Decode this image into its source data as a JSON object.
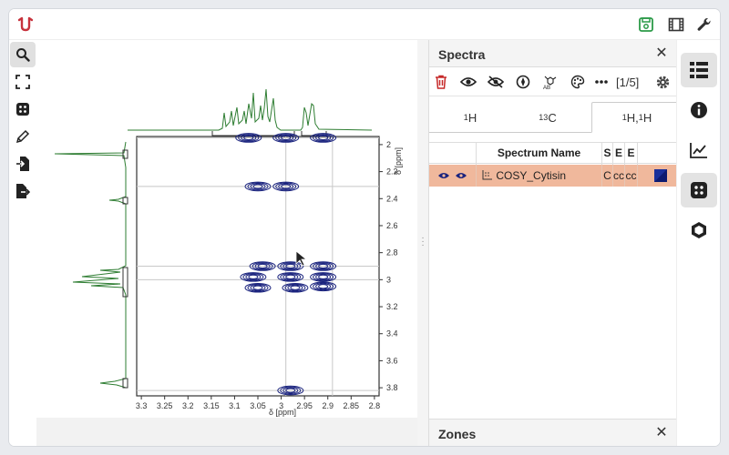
{
  "app": {
    "accent": "#c7323c",
    "save_color": "#2b9a48"
  },
  "top_icons": [
    "save-icon",
    "film-icon",
    "wrench-icon"
  ],
  "left_tools": [
    "zoom-icon",
    "fullscreen-icon",
    "zones-icon",
    "pen-icon",
    "import-icon",
    "export-icon"
  ],
  "viewer": {
    "x_axis_label": "δ [ppm]",
    "y_axis_label": "δ [ppm]",
    "x_ticks": [
      "3.3",
      "3.25",
      "3.2",
      "3.15",
      "3.1",
      "3.05",
      "3",
      "2.95",
      "2.9",
      "2.85",
      "2.8"
    ],
    "y_ticks": [
      "2",
      "2.2",
      "2.4",
      "2.6",
      "2.8",
      "3",
      "3.2",
      "3.4",
      "3.6",
      "3.8"
    ],
    "trace_color": "#2e7d32",
    "contour_color": "#1a237e"
  },
  "chart_data": {
    "type": "heatmap",
    "xlabel": "δ [ppm]",
    "ylabel": "δ [ppm]",
    "xlim": [
      3.31,
      2.79
    ],
    "ylim": [
      1.94,
      3.86
    ],
    "x_ticks": [
      3.3,
      3.25,
      3.2,
      3.15,
      3.1,
      3.05,
      3.0,
      2.95,
      2.9,
      2.85,
      2.8
    ],
    "y_ticks": [
      2.0,
      2.2,
      2.4,
      2.6,
      2.8,
      3.0,
      3.2,
      3.4,
      3.6,
      3.8
    ],
    "cross_peaks": [
      {
        "x": 3.07,
        "y": 1.95
      },
      {
        "x": 2.99,
        "y": 1.95
      },
      {
        "x": 2.91,
        "y": 1.95
      },
      {
        "x": 3.05,
        "y": 2.31
      },
      {
        "x": 2.99,
        "y": 2.31
      },
      {
        "x": 3.04,
        "y": 2.9
      },
      {
        "x": 2.98,
        "y": 2.9
      },
      {
        "x": 2.91,
        "y": 2.9
      },
      {
        "x": 3.06,
        "y": 2.98
      },
      {
        "x": 2.98,
        "y": 2.98
      },
      {
        "x": 2.91,
        "y": 2.98
      },
      {
        "x": 3.05,
        "y": 3.06
      },
      {
        "x": 2.97,
        "y": 3.06
      },
      {
        "x": 2.91,
        "y": 3.05
      },
      {
        "x": 2.98,
        "y": 3.82
      }
    ],
    "h_lines": [
      1.95,
      2.31,
      2.9,
      3.0,
      3.82
    ],
    "v_lines": [
      2.99,
      2.89
    ],
    "grid": false
  },
  "spectra_panel": {
    "title": "Spectra",
    "page": "[1/5]",
    "tabs": [
      {
        "base": "",
        "sup": "1",
        "el": "H"
      },
      {
        "base": "",
        "sup": "13",
        "el": "C"
      },
      {
        "base": "",
        "sup": "1",
        "el": "H,",
        "sup2": "1",
        "el2": "H"
      }
    ],
    "columns": [
      "Spectrum Name",
      "S",
      "E",
      "E"
    ],
    "rows": [
      {
        "name": "COSY_Cytisin",
        "c1": "C",
        "c2": "cc",
        "c3": "cc",
        "color": "#1a2f9a"
      }
    ]
  },
  "zones_panel": {
    "title": "Zones"
  },
  "right_icons": [
    "table-icon",
    "info-icon",
    "chart-icon",
    "zones-icon",
    "hexagon-icon"
  ]
}
